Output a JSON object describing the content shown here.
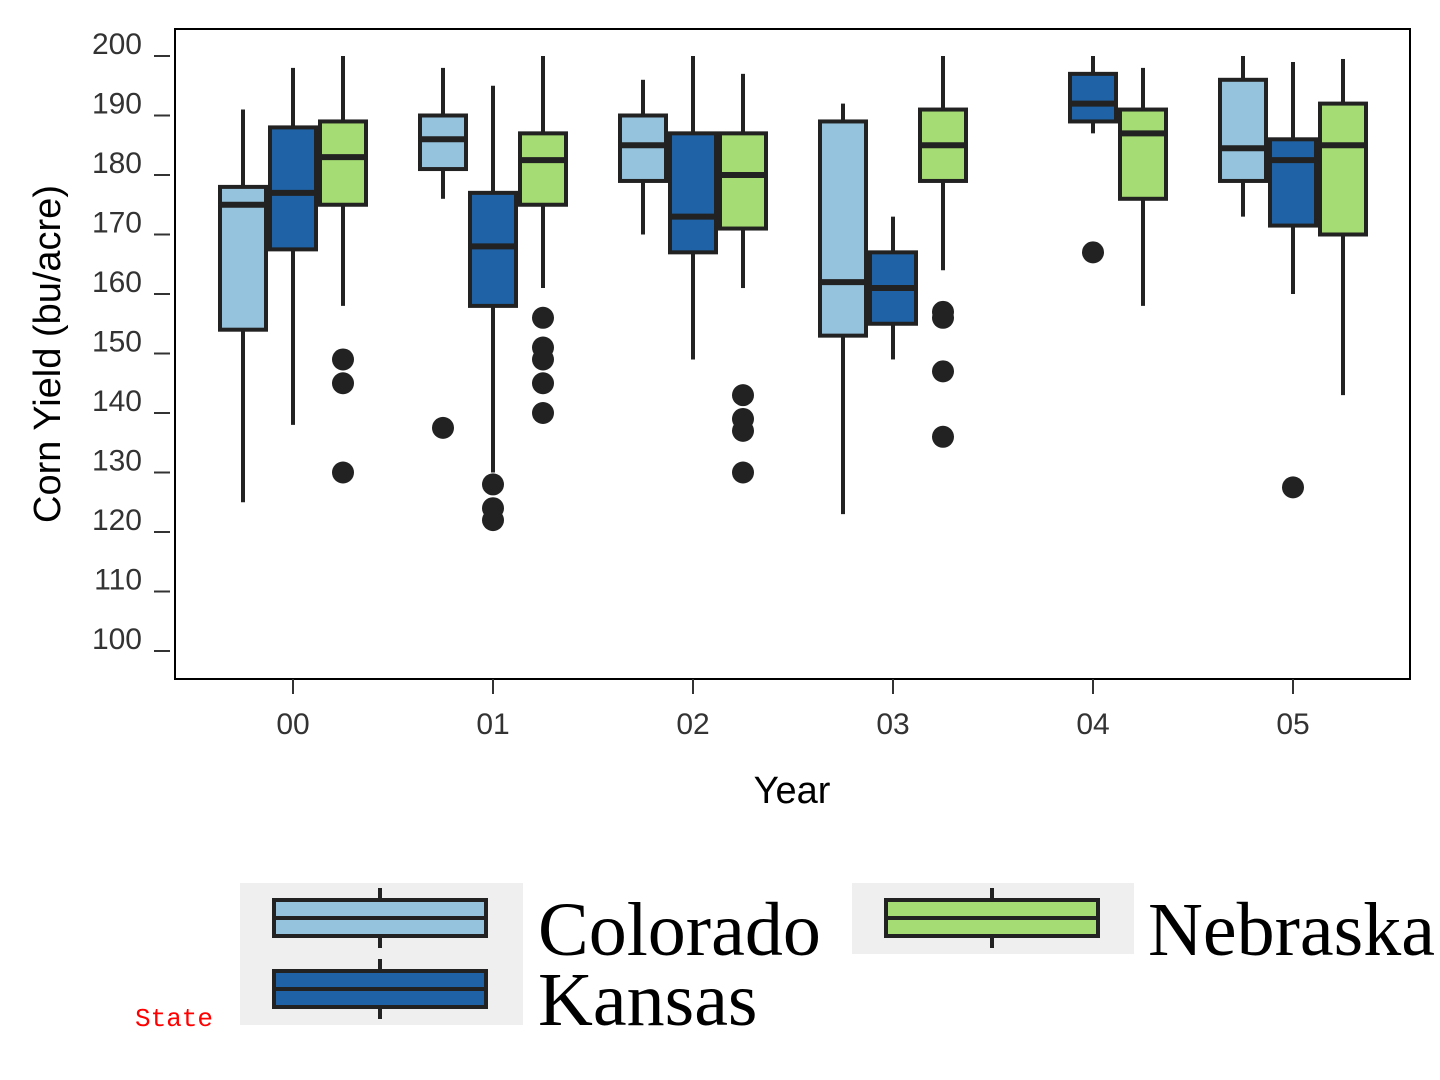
{
  "chart_data": {
    "type": "boxplot",
    "xlabel": "Year",
    "ylabel": "Corn Yield (bu/acre)",
    "ylim": [
      95,
      205
    ],
    "yticks": [
      100,
      110,
      120,
      130,
      140,
      150,
      160,
      170,
      180,
      190,
      200
    ],
    "categories": [
      "00",
      "01",
      "02",
      "03",
      "04",
      "05"
    ],
    "legend_title": "State",
    "legend_position": "bottom",
    "grid": false,
    "series": [
      {
        "name": "Colorado",
        "color": "#95c3dd",
        "boxes": [
          {
            "category": "00",
            "whisker_low": 125,
            "q1": 154,
            "median": 175,
            "q3": 178,
            "whisker_high": 191,
            "outliers": []
          },
          {
            "category": "01",
            "whisker_low": 176,
            "q1": 181,
            "median": 186,
            "q3": 190,
            "whisker_high": 198,
            "outliers": [
              137.5
            ]
          },
          {
            "category": "02",
            "whisker_low": 170,
            "q1": 179,
            "median": 185,
            "q3": 190,
            "whisker_high": 196,
            "outliers": []
          },
          {
            "category": "03",
            "whisker_low": 123,
            "q1": 153,
            "median": 162,
            "q3": 189,
            "whisker_high": 192,
            "outliers": []
          },
          {
            "category": "05",
            "whisker_low": 173,
            "q1": 179,
            "median": 184.5,
            "q3": 196,
            "whisker_high": 200,
            "outliers": []
          }
        ]
      },
      {
        "name": "Kansas",
        "color": "#1f63a6",
        "boxes": [
          {
            "category": "00",
            "whisker_low": 138,
            "q1": 167.5,
            "median": 177,
            "q3": 188,
            "whisker_high": 198,
            "outliers": []
          },
          {
            "category": "01",
            "whisker_low": 130,
            "q1": 158,
            "median": 168,
            "q3": 177,
            "whisker_high": 195,
            "outliers": [
              128,
              124,
              122
            ]
          },
          {
            "category": "02",
            "whisker_low": 149,
            "q1": 167,
            "median": 173,
            "q3": 187,
            "whisker_high": 200,
            "outliers": []
          },
          {
            "category": "03",
            "whisker_low": 149,
            "q1": 155,
            "median": 161,
            "q3": 167,
            "whisker_high": 173,
            "outliers": []
          },
          {
            "category": "04",
            "whisker_low": 187,
            "q1": 189,
            "median": 192,
            "q3": 197,
            "whisker_high": 200,
            "outliers": [
              167
            ]
          },
          {
            "category": "05",
            "whisker_low": 160,
            "q1": 171.5,
            "median": 182.5,
            "q3": 186,
            "whisker_high": 199,
            "outliers": [
              127.5
            ]
          }
        ]
      },
      {
        "name": "Nebraska",
        "color": "#a5dc73",
        "boxes": [
          {
            "category": "00",
            "whisker_low": 158,
            "q1": 175,
            "median": 183,
            "q3": 189,
            "whisker_high": 200,
            "outliers": [
              149,
              145,
              130
            ]
          },
          {
            "category": "01",
            "whisker_low": 161,
            "q1": 175,
            "median": 182.5,
            "q3": 187,
            "whisker_high": 200,
            "outliers": [
              156,
              151,
              149,
              145,
              140
            ]
          },
          {
            "category": "02",
            "whisker_low": 161,
            "q1": 171,
            "median": 180,
            "q3": 187,
            "whisker_high": 197,
            "outliers": [
              143,
              139,
              137,
              130
            ]
          },
          {
            "category": "03",
            "whisker_low": 164,
            "q1": 179,
            "median": 185,
            "q3": 191,
            "whisker_high": 200,
            "outliers": [
              157,
              156,
              147,
              136
            ]
          },
          {
            "category": "04",
            "whisker_low": 158,
            "q1": 176,
            "median": 187,
            "q3": 191,
            "whisker_high": 198,
            "outliers": []
          },
          {
            "category": "05",
            "whisker_low": 143,
            "q1": 170,
            "median": 185,
            "q3": 192,
            "whisker_high": 199.5,
            "outliers": []
          }
        ]
      }
    ]
  }
}
